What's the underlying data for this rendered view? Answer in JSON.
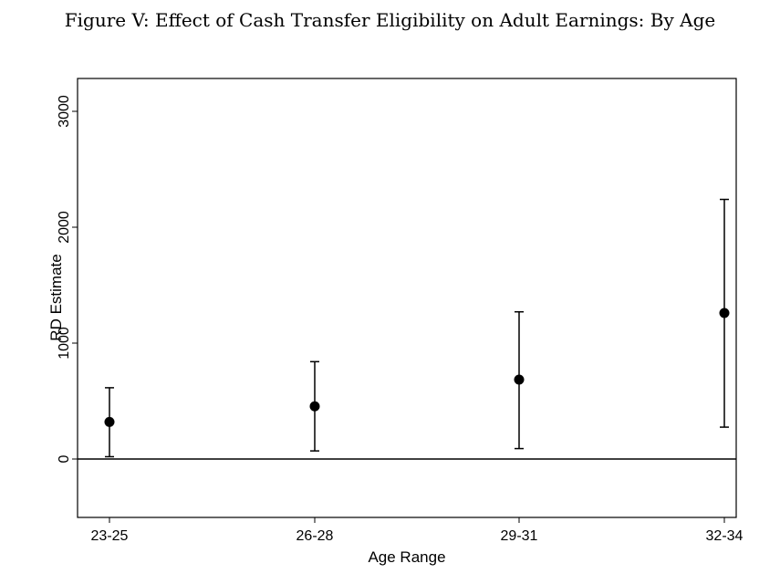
{
  "title": "Figure V: Effect of Cash Transfer Eligibility on Adult Earnings: By Age",
  "chart_data": {
    "type": "scatter",
    "subtype": "point-estimates-with-confidence-intervals",
    "title": "Figure V: Effect of Cash Transfer Eligibility on Adult Earnings: By Age",
    "xlabel": "Age Range",
    "ylabel": "RD Estimate",
    "categories": [
      "23-25",
      "26-28",
      "29-31",
      "32-34"
    ],
    "estimates": [
      320,
      455,
      685,
      1260
    ],
    "ci_lower": [
      20,
      70,
      90,
      275
    ],
    "ci_upper": [
      615,
      840,
      1270,
      2240
    ],
    "yticks": [
      0,
      1000,
      2000,
      3000
    ],
    "ylim": [
      -500,
      3300
    ],
    "reference_line": 0,
    "grid": false,
    "legend": "none"
  }
}
